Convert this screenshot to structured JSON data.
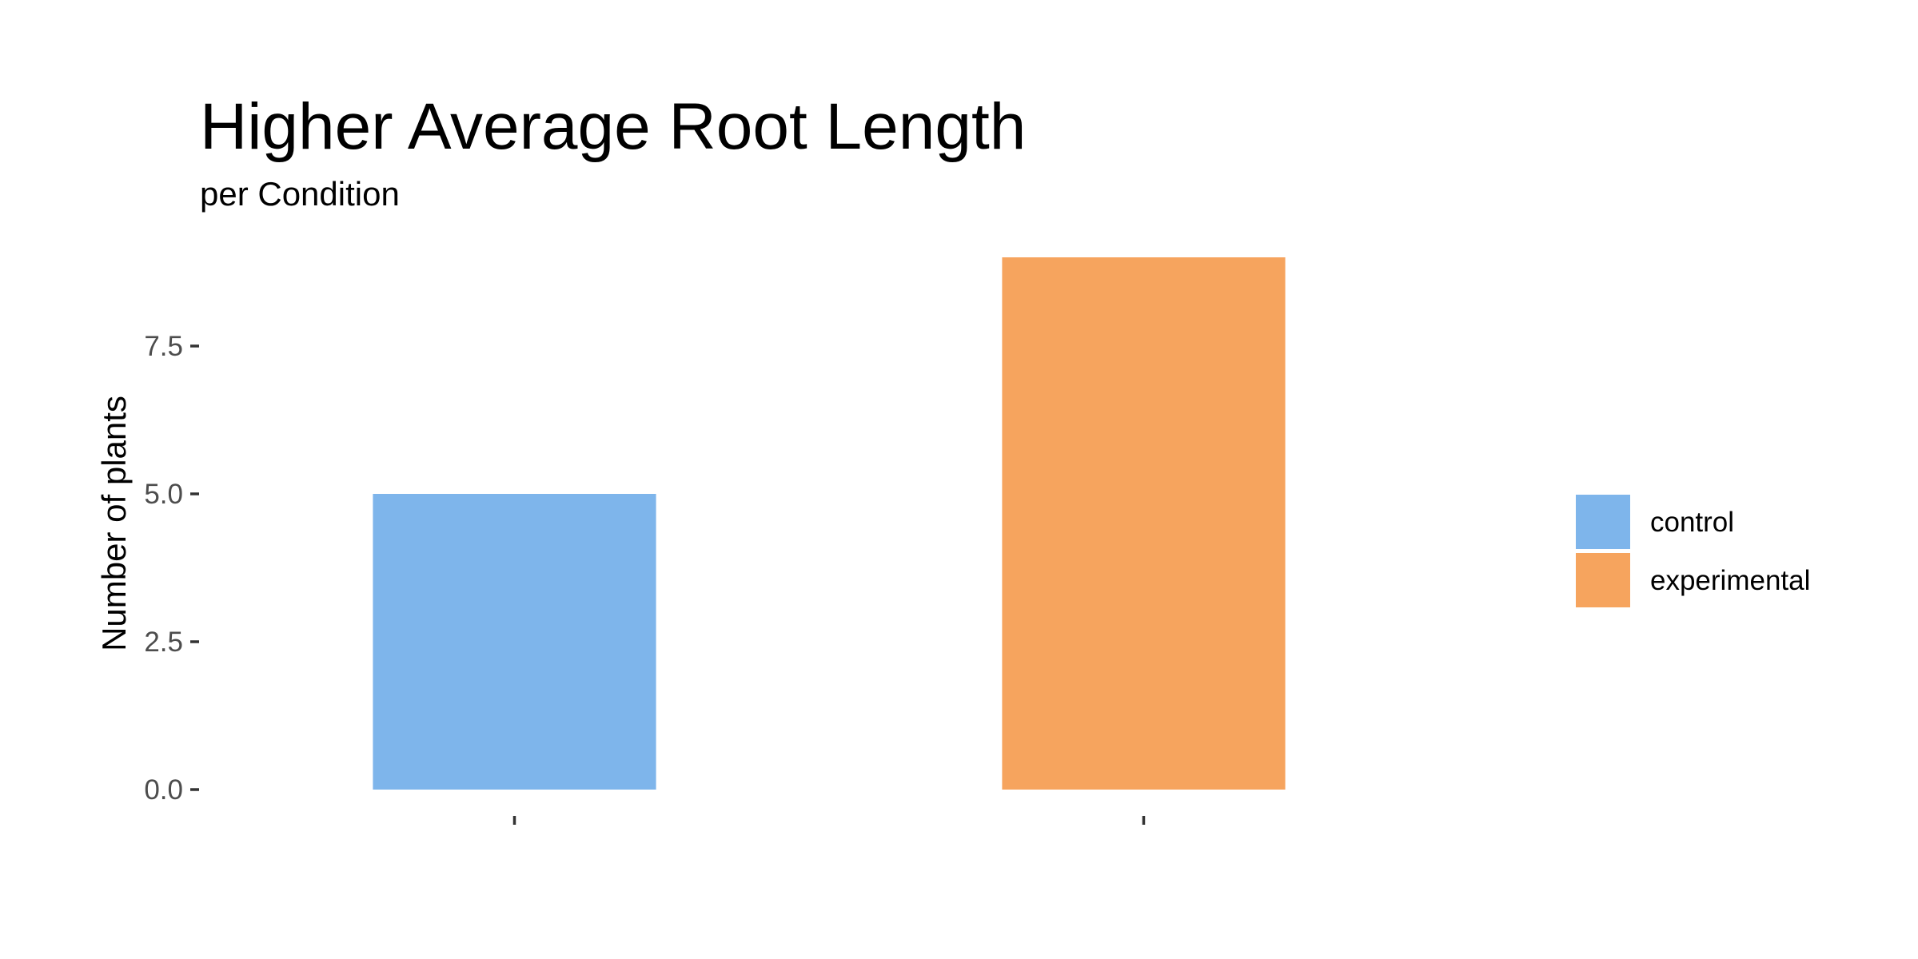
{
  "chart_data": {
    "type": "bar",
    "title": "Higher Average Root Length",
    "subtitle": "per Condition",
    "xlabel": "",
    "ylabel": "Number of plants",
    "categories": [
      "control",
      "experimental"
    ],
    "values": [
      5,
      9
    ],
    "colors": [
      "#7EB5EB",
      "#F6A45E"
    ],
    "ylim": [
      0,
      9
    ],
    "yticks": [
      0,
      2.5,
      5,
      7.5
    ],
    "ytick_labels": [
      "0.0",
      "2.5",
      "5.0",
      "7.5"
    ],
    "x_tick_labels_shown": false,
    "grid": false,
    "legend": {
      "position": "right",
      "entries": [
        {
          "label": "control",
          "color": "#7EB5EB"
        },
        {
          "label": "experimental",
          "color": "#F6A45E"
        }
      ]
    }
  }
}
